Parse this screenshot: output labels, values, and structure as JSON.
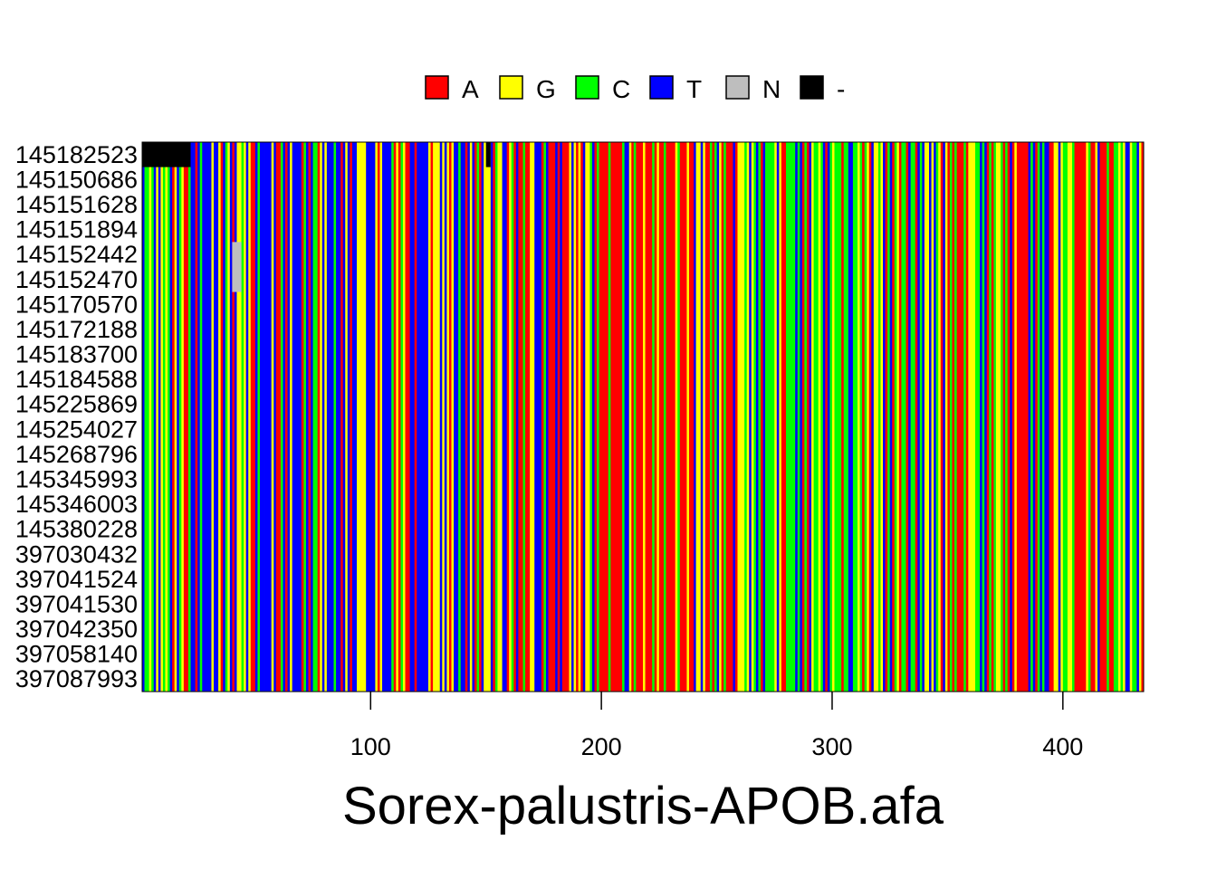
{
  "chart_data": {
    "type": "heatmap",
    "title": "Sorex-palustris-APOB.afa",
    "xlabel": "",
    "ylabel": "",
    "xlim": [
      1,
      434
    ],
    "x_ticks": [
      100,
      200,
      300,
      400
    ],
    "legend": {
      "placement": "top",
      "items": [
        {
          "label": "A",
          "color": "#ff0000"
        },
        {
          "label": "G",
          "color": "#ffff00"
        },
        {
          "label": "C",
          "color": "#00ff00"
        },
        {
          "label": "T",
          "color": "#0000ff"
        },
        {
          "label": "N",
          "color": "#bebebe"
        },
        {
          "label": "-",
          "color": "#000000"
        }
      ]
    },
    "rows": [
      "145182523",
      "145150686",
      "145151628",
      "145151894",
      "145152442",
      "145152470",
      "145170570",
      "145172188",
      "145183700",
      "145184588",
      "145225869",
      "145254027",
      "145268796",
      "145345993",
      "145346003",
      "145380228",
      "397030432",
      "397041524",
      "397041530",
      "397042350",
      "397058140",
      "397087993"
    ],
    "alignment_length": 434,
    "gap_regions": [
      {
        "row": "145182523",
        "start": 1,
        "end": 21
      },
      {
        "row": "145182523",
        "start": 150,
        "end": 151
      }
    ],
    "ambiguous_regions": [
      {
        "rows": [
          "145152442",
          "145152470"
        ],
        "start": 40,
        "end": 43
      }
    ]
  }
}
